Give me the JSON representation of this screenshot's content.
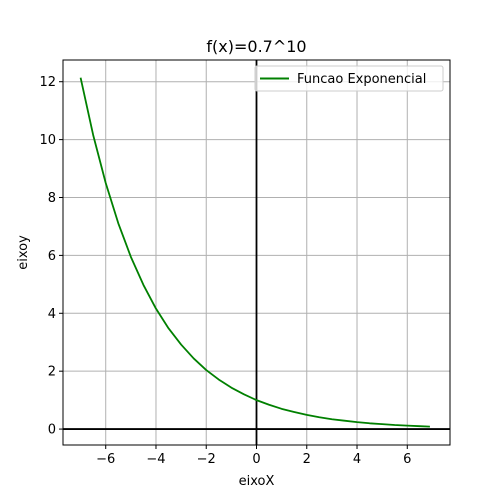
{
  "chart_data": {
    "type": "line",
    "title": "f(x)=0.7^10",
    "xlabel": "eixoX",
    "ylabel": "eixoy",
    "xlim": [
      -7.7,
      7.7
    ],
    "ylim": [
      -0.55,
      12.75
    ],
    "xticks": [
      -6,
      -4,
      -2,
      0,
      2,
      4,
      6
    ],
    "xtick_labels": [
      "−6",
      "−4",
      "−2",
      "0",
      "2",
      "4",
      "6"
    ],
    "yticks": [
      0,
      2,
      4,
      6,
      8,
      10,
      12
    ],
    "ytick_labels": [
      "0",
      "2",
      "4",
      "6",
      "8",
      "10",
      "12"
    ],
    "grid": true,
    "legend_position": "top-right",
    "reference_lines": {
      "y0": true,
      "x0": true
    },
    "series": [
      {
        "name": "Funcao Exponencial",
        "color": "#008000",
        "x": [
          -7,
          -6.5,
          -6,
          -5.5,
          -5,
          -4.5,
          -4,
          -3.5,
          -3,
          -2.5,
          -2,
          -1.5,
          -1,
          -0.5,
          0,
          0.5,
          1,
          1.5,
          2,
          2.5,
          3,
          3.5,
          4,
          4.5,
          5,
          5.5,
          6,
          6.5,
          6.9
        ],
        "y": [
          12.14,
          10.16,
          8.5,
          7.11,
          5.95,
          4.98,
          4.16,
          3.48,
          2.92,
          2.44,
          2.04,
          1.71,
          1.43,
          1.2,
          1.0,
          0.84,
          0.7,
          0.59,
          0.49,
          0.41,
          0.34,
          0.29,
          0.24,
          0.2,
          0.17,
          0.14,
          0.12,
          0.1,
          0.085
        ]
      }
    ]
  }
}
